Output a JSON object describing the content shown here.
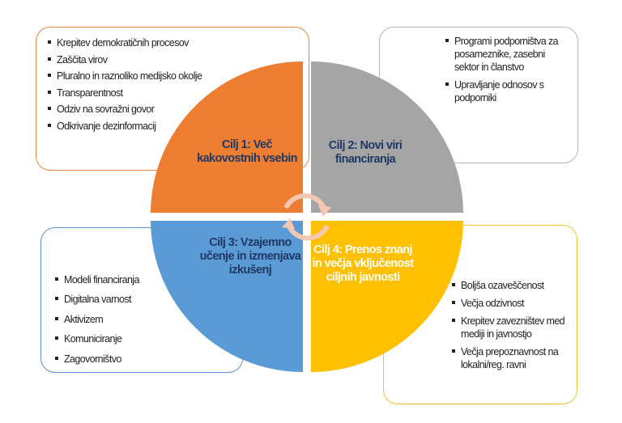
{
  "goals": [
    {
      "title": "Cilj 1: Več kakovostnih vsebin",
      "color": "#ed7d31",
      "items": [
        "Krepitev demokratičnih procesov",
        "Zaščita virov",
        "Pluralno in raznoliko medijsko okolje",
        "Transparentnost",
        "Odziv na sovražni govor",
        "Odkrivanje dezinformacij"
      ]
    },
    {
      "title": "Cilj 2: Novi viri financiranja",
      "color": "#a5a5a5",
      "items": [
        "Programi podporništva za posameznike, zasebni sektor in članstvo",
        "Upravljanje odnosov s podporniki"
      ]
    },
    {
      "title": "Cilj 3: Vzajemno učenje in izmenjava izkušenj",
      "color": "#5b9bd5",
      "items": [
        "Modeli financiranja",
        "Digitalna varnost",
        "Aktivizem",
        "Komuniciranje",
        "Zagovorništvo"
      ]
    },
    {
      "title": "Cilj 4: Prenos znanj in večja vključenost ciljnih javnosti",
      "color": "#ffc000",
      "items": [
        "Boljša ozaveščenost",
        "Večja odzivnost",
        "Krepitev zavezništev med mediji in javnostjo",
        "Večja prepoznavnost na lokalni/reg. ravni"
      ]
    }
  ],
  "arrow_color": "#f4c7b3"
}
